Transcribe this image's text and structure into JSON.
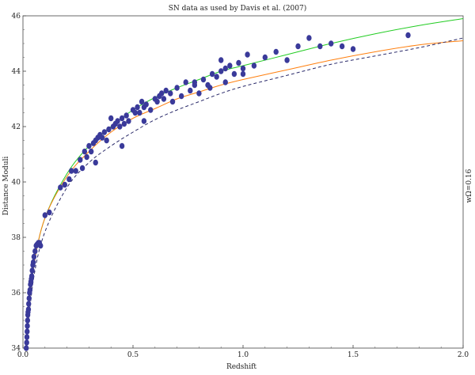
{
  "chart_data": {
    "type": "scatter",
    "title": "SN data as used by Davis et al. (2007)",
    "xlabel": "Redshift",
    "ylabel": "Distance Moduli",
    "side_label": "wΩ=0.16",
    "xlim": [
      0,
      2.0
    ],
    "ylim": [
      34,
      46
    ],
    "x_ticks": [
      0,
      0.5,
      1.0,
      1.5,
      2.0
    ],
    "x_tick_labels": [
      "0.0",
      "0.5",
      "1.0",
      "1.5",
      "2.0"
    ],
    "y_ticks": [
      34,
      36,
      38,
      40,
      42,
      44,
      46
    ],
    "y_tick_labels": [
      "34",
      "36",
      "38",
      "40",
      "42",
      "44",
      "46"
    ],
    "grid": false,
    "legend": "none",
    "series": [
      {
        "kind": "points",
        "color": "#3a3a9a",
        "points": [
          [
            0.015,
            34.0
          ],
          [
            0.017,
            34.2
          ],
          [
            0.018,
            34.4
          ],
          [
            0.019,
            34.6
          ],
          [
            0.02,
            34.8
          ],
          [
            0.021,
            35.0
          ],
          [
            0.022,
            35.2
          ],
          [
            0.023,
            35.3
          ],
          [
            0.025,
            35.4
          ],
          [
            0.026,
            35.6
          ],
          [
            0.028,
            35.8
          ],
          [
            0.03,
            36.0
          ],
          [
            0.032,
            36.1
          ],
          [
            0.034,
            36.3
          ],
          [
            0.036,
            36.4
          ],
          [
            0.038,
            36.5
          ],
          [
            0.04,
            36.6
          ],
          [
            0.042,
            36.8
          ],
          [
            0.045,
            37.0
          ],
          [
            0.047,
            37.1
          ],
          [
            0.05,
            37.3
          ],
          [
            0.055,
            37.5
          ],
          [
            0.06,
            37.7
          ],
          [
            0.065,
            37.75
          ],
          [
            0.07,
            37.8
          ],
          [
            0.075,
            37.8
          ],
          [
            0.08,
            37.7
          ],
          [
            0.1,
            38.8
          ],
          [
            0.12,
            38.9
          ],
          [
            0.17,
            39.8
          ],
          [
            0.19,
            39.9
          ],
          [
            0.21,
            40.1
          ],
          [
            0.22,
            40.4
          ],
          [
            0.24,
            40.4
          ],
          [
            0.26,
            40.8
          ],
          [
            0.28,
            41.1
          ],
          [
            0.29,
            40.9
          ],
          [
            0.3,
            41.3
          ],
          [
            0.31,
            41.1
          ],
          [
            0.32,
            41.4
          ],
          [
            0.33,
            41.5
          ],
          [
            0.34,
            41.6
          ],
          [
            0.35,
            41.7
          ],
          [
            0.36,
            41.6
          ],
          [
            0.37,
            41.8
          ],
          [
            0.38,
            41.5
          ],
          [
            0.39,
            41.9
          ],
          [
            0.4,
            42.3
          ],
          [
            0.41,
            42.0
          ],
          [
            0.42,
            42.1
          ],
          [
            0.43,
            42.2
          ],
          [
            0.44,
            42.0
          ],
          [
            0.45,
            42.3
          ],
          [
            0.46,
            42.1
          ],
          [
            0.47,
            42.4
          ],
          [
            0.48,
            42.2
          ],
          [
            0.5,
            42.6
          ],
          [
            0.51,
            42.5
          ],
          [
            0.52,
            42.7
          ],
          [
            0.53,
            42.5
          ],
          [
            0.54,
            42.9
          ],
          [
            0.55,
            42.7
          ],
          [
            0.56,
            42.8
          ],
          [
            0.58,
            42.6
          ],
          [
            0.6,
            43.0
          ],
          [
            0.61,
            42.9
          ],
          [
            0.62,
            43.1
          ],
          [
            0.63,
            43.2
          ],
          [
            0.64,
            43.0
          ],
          [
            0.65,
            43.3
          ],
          [
            0.67,
            43.2
          ],
          [
            0.7,
            43.4
          ],
          [
            0.72,
            43.1
          ],
          [
            0.74,
            43.6
          ],
          [
            0.76,
            43.3
          ],
          [
            0.78,
            43.5
          ],
          [
            0.8,
            43.2
          ],
          [
            0.82,
            43.7
          ],
          [
            0.84,
            43.5
          ],
          [
            0.86,
            43.9
          ],
          [
            0.88,
            43.8
          ],
          [
            0.9,
            44.0
          ],
          [
            0.92,
            43.6
          ],
          [
            0.94,
            44.2
          ],
          [
            0.96,
            43.9
          ],
          [
            0.98,
            44.3
          ],
          [
            1.0,
            44.1
          ],
          [
            1.02,
            44.6
          ],
          [
            1.05,
            44.2
          ],
          [
            1.1,
            44.5
          ],
          [
            1.15,
            44.7
          ],
          [
            1.2,
            44.4
          ],
          [
            1.25,
            44.9
          ],
          [
            1.3,
            45.2
          ],
          [
            1.35,
            44.9
          ],
          [
            1.4,
            45.0
          ],
          [
            1.45,
            44.9
          ],
          [
            1.5,
            44.8
          ],
          [
            1.75,
            45.3
          ],
          [
            0.33,
            40.7
          ],
          [
            0.45,
            41.3
          ],
          [
            0.27,
            40.5
          ],
          [
            0.55,
            42.2
          ],
          [
            0.68,
            42.9
          ],
          [
            0.85,
            43.4
          ],
          [
            1.0,
            43.9
          ],
          [
            0.78,
            43.6
          ],
          [
            0.9,
            44.4
          ],
          [
            0.92,
            44.1
          ]
        ]
      },
      {
        "kind": "line",
        "color": "#22cc22",
        "points": [
          [
            0.02,
            34.9
          ],
          [
            0.05,
            37.0
          ],
          [
            0.1,
            38.7
          ],
          [
            0.2,
            40.3
          ],
          [
            0.3,
            41.3
          ],
          [
            0.4,
            42.0
          ],
          [
            0.5,
            42.6
          ],
          [
            0.6,
            43.05
          ],
          [
            0.7,
            43.4
          ],
          [
            0.8,
            43.7
          ],
          [
            0.9,
            44.0
          ],
          [
            1.0,
            44.2
          ],
          [
            1.2,
            44.6
          ],
          [
            1.4,
            45.0
          ],
          [
            1.6,
            45.35
          ],
          [
            1.8,
            45.65
          ],
          [
            2.0,
            45.9
          ]
        ]
      },
      {
        "kind": "line",
        "color": "#ff7f0e",
        "points": [
          [
            0.02,
            34.9
          ],
          [
            0.05,
            37.0
          ],
          [
            0.1,
            38.7
          ],
          [
            0.2,
            40.2
          ],
          [
            0.3,
            41.1
          ],
          [
            0.4,
            41.8
          ],
          [
            0.5,
            42.3
          ],
          [
            0.6,
            42.65
          ],
          [
            0.7,
            43.0
          ],
          [
            0.8,
            43.25
          ],
          [
            0.9,
            43.5
          ],
          [
            1.0,
            43.7
          ],
          [
            1.2,
            44.05
          ],
          [
            1.4,
            44.4
          ],
          [
            1.6,
            44.7
          ],
          [
            1.8,
            44.95
          ],
          [
            2.0,
            45.1
          ]
        ]
      },
      {
        "kind": "line",
        "dashed": true,
        "color": "#2a2a6a",
        "points": [
          [
            0.02,
            34.5
          ],
          [
            0.05,
            36.6
          ],
          [
            0.1,
            38.2
          ],
          [
            0.2,
            39.8
          ],
          [
            0.3,
            40.7
          ],
          [
            0.4,
            41.3
          ],
          [
            0.5,
            41.8
          ],
          [
            0.6,
            42.25
          ],
          [
            0.7,
            42.6
          ],
          [
            0.8,
            42.9
          ],
          [
            0.9,
            43.2
          ],
          [
            1.0,
            43.45
          ],
          [
            1.2,
            43.85
          ],
          [
            1.4,
            44.25
          ],
          [
            1.6,
            44.55
          ],
          [
            1.8,
            44.85
          ],
          [
            2.0,
            45.2
          ]
        ]
      }
    ]
  }
}
